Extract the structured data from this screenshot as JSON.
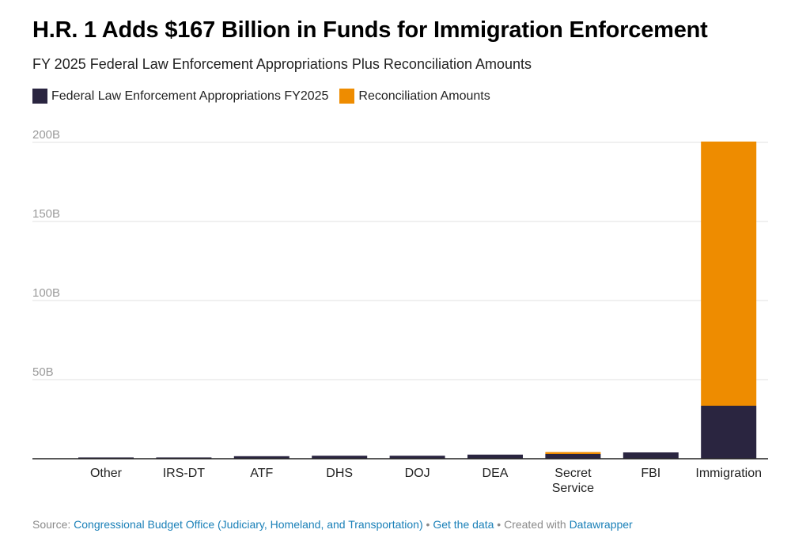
{
  "title": "H.R. 1 Adds $167 Billion in Funds for Immigration Enforcement",
  "subtitle": "FY 2025 Federal Law Enforcement Appropriations Plus Reconciliation Amounts",
  "legend": [
    {
      "label": "Federal Law Enforcement Appropriations FY2025",
      "color": "#2a2540"
    },
    {
      "label": "Reconciliation Amounts",
      "color": "#ee8c00"
    }
  ],
  "chart_data": {
    "type": "bar",
    "stacked": true,
    "title": "H.R. 1 Adds $167 Billion in Funds for Immigration Enforcement",
    "categories": [
      [
        "Other"
      ],
      [
        "IRS-DT"
      ],
      [
        "ATF"
      ],
      [
        "DHS"
      ],
      [
        "DOJ"
      ],
      [
        "DEA"
      ],
      [
        "Secret",
        "Service"
      ],
      [
        "FBI"
      ],
      [
        "Immigration"
      ]
    ],
    "series": [
      {
        "name": "Federal Law Enforcement Appropriations FY2025",
        "color": "#2a2540",
        "values": [
          0.8,
          0.8,
          1.6,
          1.9,
          1.9,
          2.6,
          3.0,
          4.0,
          33.5
        ]
      },
      {
        "name": "Reconciliation Amounts",
        "color": "#ee8c00",
        "values": [
          0,
          0,
          0,
          0,
          0,
          0,
          1.2,
          0,
          167
        ]
      }
    ],
    "yticks": [
      50,
      100,
      150,
      200
    ],
    "ytick_labels": [
      "50B",
      "100B",
      "150B",
      "200B"
    ],
    "ylim": [
      0,
      200
    ],
    "grid": true,
    "xlabel": "",
    "ylabel": ""
  },
  "footer": {
    "source_prefix": "Source:",
    "source_link": "Congressional Budget Office (Judiciary, Homeland, and Transportation)",
    "get_data": "Get the data",
    "created_with": "Created with",
    "tool": "Datawrapper",
    "separator": "•"
  }
}
